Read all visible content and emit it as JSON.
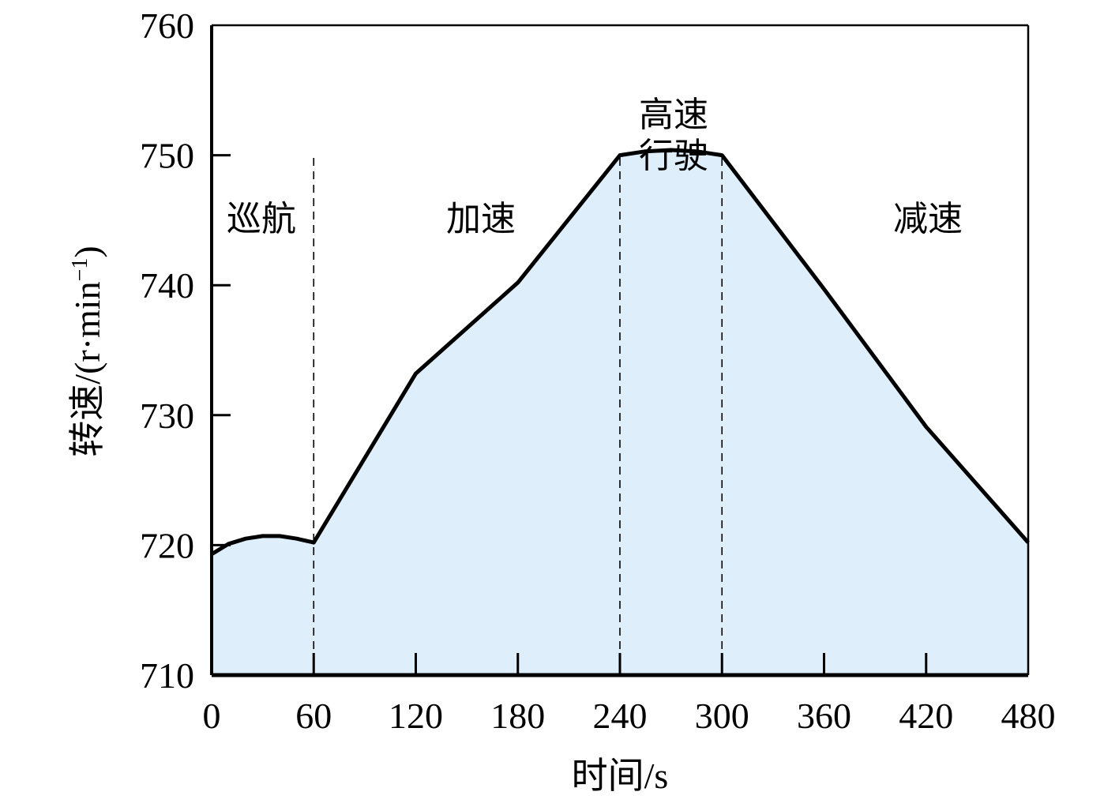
{
  "chart_data": {
    "type": "area",
    "xlabel": "时间/s",
    "ylabel_main": "转速/(r·min",
    "ylabel_sup": "−1",
    "ylabel_close": ")",
    "xlim": [
      0,
      480
    ],
    "ylim": [
      710,
      760
    ],
    "x_ticks": [
      0,
      60,
      120,
      180,
      240,
      300,
      360,
      420,
      480
    ],
    "y_ticks": [
      710,
      720,
      730,
      740,
      750,
      760
    ],
    "x_tick_labels": [
      "0",
      "60",
      "120",
      "180",
      "240",
      "300",
      "360",
      "420",
      "480"
    ],
    "y_tick_labels": [
      "710",
      "720",
      "730",
      "740",
      "750",
      "760"
    ],
    "series": [
      {
        "x": [
          0,
          10,
          20,
          30,
          40,
          50,
          60,
          120,
          180,
          240,
          255,
          270,
          285,
          300,
          360,
          420,
          480
        ],
        "values": [
          719.3,
          720.1,
          720.5,
          720.7,
          720.7,
          720.5,
          720.2,
          733.2,
          740.2,
          750.0,
          750.3,
          750.4,
          750.3,
          750.0,
          739.7,
          729.1,
          720.2
        ]
      }
    ],
    "phase_boundaries": [
      60,
      240,
      300
    ],
    "phases": [
      {
        "lines": [
          "巡航"
        ]
      },
      {
        "lines": [
          "加速"
        ]
      },
      {
        "lines": [
          "高速",
          "行驶"
        ]
      },
      {
        "lines": [
          "减速"
        ]
      }
    ],
    "colors": {
      "fill": "#deeefa",
      "line": "#000000"
    },
    "grid": false,
    "legend": "none"
  }
}
